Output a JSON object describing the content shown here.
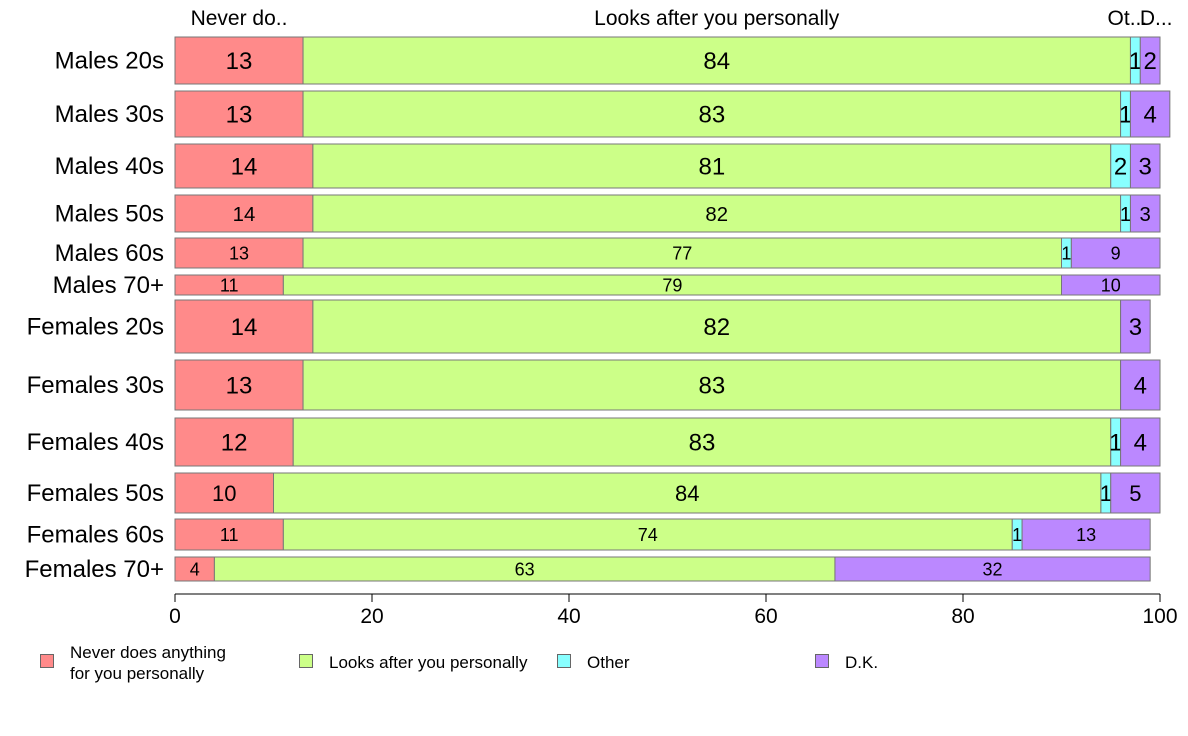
{
  "chart_data": {
    "type": "bar",
    "orientation": "horizontal",
    "stacked": true,
    "categories": [
      "Males 20s",
      "Males 30s",
      "Males 40s",
      "Males 50s",
      "Males 60s",
      "Males 70+",
      "Females 20s",
      "Females 30s",
      "Females 40s",
      "Females 50s",
      "Females 60s",
      "Females 70+"
    ],
    "series": [
      {
        "name": "Never does anything for you personally",
        "color": "#ff8a8a",
        "values": [
          13,
          13,
          14,
          14,
          13,
          11,
          14,
          13,
          12,
          10,
          11,
          4
        ]
      },
      {
        "name": "Looks after you personally",
        "color": "#ccff88",
        "values": [
          84,
          83,
          81,
          82,
          77,
          79,
          82,
          83,
          83,
          84,
          74,
          63
        ]
      },
      {
        "name": "Other",
        "color": "#88ffff",
        "values": [
          1,
          1,
          2,
          1,
          1,
          0,
          0,
          0,
          1,
          1,
          1,
          0
        ]
      },
      {
        "name": "D.K.",
        "color": "#bb88ff",
        "values": [
          2,
          4,
          3,
          3,
          9,
          10,
          3,
          4,
          4,
          5,
          13,
          32
        ]
      }
    ],
    "top_labels": [
      "Never do..",
      "Looks after you personally",
      "Ot...",
      "D..."
    ],
    "xlim": [
      0,
      100
    ],
    "xticks": [
      "0",
      "20",
      "40",
      "60",
      "80",
      "100"
    ],
    "xlabel": "",
    "ylabel": "",
    "grid": false,
    "legend_position": "bottom",
    "legend_labels": [
      [
        "Never does anything",
        "for you personally"
      ],
      [
        "Looks after you personally"
      ],
      [
        "Other"
      ],
      [
        "D.K."
      ]
    ]
  }
}
